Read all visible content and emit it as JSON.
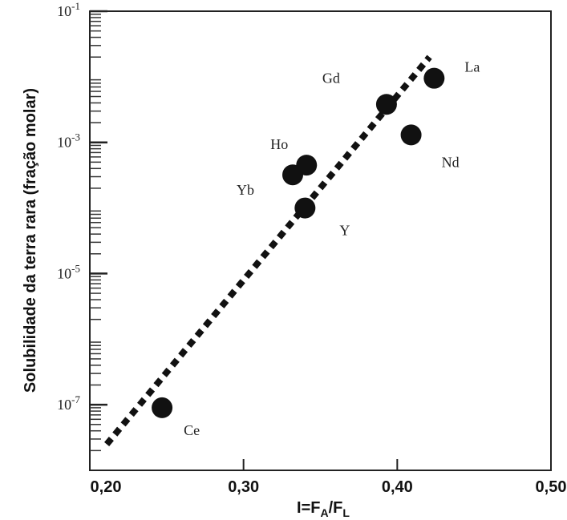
{
  "chart_data": {
    "type": "scatter",
    "xlabel_main": "I=F",
    "xlabel_sub_a": "A",
    "xlabel_slash": "/F",
    "xlabel_sub_l": "L",
    "ylabel": "Solubilidade da terra rara (fração molar)",
    "x_ticks": [
      "0,20",
      "0,30",
      "0,40",
      "0,50"
    ],
    "x_tick_values": [
      0.2,
      0.3,
      0.4,
      0.5
    ],
    "y_ticks": [
      {
        "base": "10",
        "exp": "-1",
        "value": 0.1
      },
      {
        "base": "10",
        "exp": "-3",
        "value": 0.001
      },
      {
        "base": "10",
        "exp": "-5",
        "value": 1e-05
      },
      {
        "base": "10",
        "exp": "-7",
        "value": 1e-07
      }
    ],
    "xlim": [
      0.2,
      0.5
    ],
    "ylim_log10": [
      -8,
      -1
    ],
    "y_scale": "log",
    "grid": false,
    "points": [
      {
        "label": "La",
        "x": 0.424,
        "y": 0.0095
      },
      {
        "label": "Gd",
        "x": 0.393,
        "y": 0.0038
      },
      {
        "label": "Nd",
        "x": 0.409,
        "y": 0.0013
      },
      {
        "label": "Ho",
        "x": 0.341,
        "y": 0.00045
      },
      {
        "label": "Yb",
        "x": 0.332,
        "y": 0.00032
      },
      {
        "label": "Y",
        "x": 0.34,
        "y": 0.0001
      },
      {
        "label": "Ce",
        "x": 0.247,
        "y": 9e-08
      }
    ],
    "trend_line": {
      "x": [
        0.211,
        0.421
      ],
      "y": [
        2.5e-08,
        0.02
      ],
      "style": "dotted"
    },
    "colors": {
      "marker": "#111111",
      "line": "#111111",
      "axis": "#222222"
    }
  }
}
